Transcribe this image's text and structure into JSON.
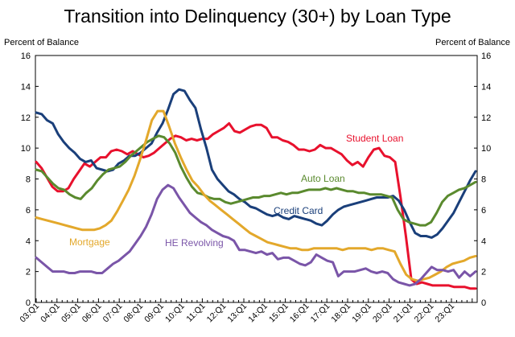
{
  "chart_data": {
    "type": "line",
    "title": "Transition into Delinquency (30+) by Loan Type",
    "ylabel_left": "Percent of Balance",
    "ylabel_right": "Percent of Balance",
    "ylim": [
      0,
      16
    ],
    "yticks": [
      "0",
      "2",
      "4",
      "6",
      "8",
      "10",
      "12",
      "14",
      "16"
    ],
    "xlabels": [
      "03:Q1",
      "04:Q1",
      "05:Q1",
      "06:Q1",
      "07:Q1",
      "08:Q1",
      "09:Q1",
      "10:Q1",
      "11:Q1",
      "12:Q1",
      "13:Q1",
      "14:Q1",
      "15:Q1",
      "16:Q1",
      "17:Q1",
      "18:Q1",
      "19:Q1",
      "20:Q1",
      "21:Q1",
      "22:Q1",
      "23:Q1"
    ],
    "series": [
      {
        "name": "Student Loan",
        "label": "Student Loan",
        "color": "#e8112d",
        "values": [
          9.1,
          8.7,
          8.1,
          7.5,
          7.2,
          7.2,
          7.4,
          8.0,
          8.5,
          9.0,
          8.8,
          9.1,
          9.4,
          9.4,
          9.8,
          9.9,
          9.8,
          9.6,
          9.8,
          9.6,
          9.4,
          9.5,
          9.7,
          10.0,
          10.3,
          10.6,
          10.8,
          10.7,
          10.5,
          10.6,
          10.5,
          10.6,
          10.6,
          10.9,
          11.1,
          11.3,
          11.6,
          11.1,
          11.0,
          11.2,
          11.4,
          11.5,
          11.5,
          11.3,
          10.7,
          10.7,
          10.5,
          10.4,
          10.2,
          9.9,
          9.9,
          9.8,
          9.9,
          10.2,
          10.0,
          10.0,
          9.8,
          9.6,
          9.2,
          8.9,
          9.1,
          8.8,
          9.4,
          9.9,
          10.0,
          9.5,
          9.4,
          9.1,
          6.8,
          4.3,
          1.5,
          1.2,
          1.3,
          1.2,
          1.1,
          1.1,
          1.1,
          1.1,
          1.0,
          1.0,
          1.0,
          0.9,
          0.9
        ]
      },
      {
        "name": "Credit Card",
        "label": "Credit Card",
        "color": "#1a3f7a",
        "values": [
          12.3,
          12.2,
          11.8,
          11.6,
          10.9,
          10.4,
          10.0,
          9.7,
          9.3,
          9.1,
          9.2,
          8.7,
          8.6,
          8.5,
          8.6,
          9.0,
          9.2,
          9.5,
          9.5,
          9.7,
          10.0,
          10.3,
          11.0,
          11.6,
          12.5,
          13.5,
          13.8,
          13.7,
          13.1,
          12.6,
          11.2,
          10.0,
          8.6,
          8.0,
          7.6,
          7.2,
          7.0,
          6.7,
          6.5,
          6.2,
          6.1,
          5.9,
          5.7,
          5.6,
          5.7,
          5.5,
          5.4,
          5.6,
          5.5,
          5.4,
          5.3,
          5.1,
          5.0,
          5.3,
          5.7,
          6.0,
          6.2,
          6.3,
          6.4,
          6.5,
          6.6,
          6.7,
          6.8,
          6.8,
          6.8,
          6.9,
          6.6,
          6.0,
          5.2,
          4.5,
          4.3,
          4.3,
          4.2,
          4.4,
          4.8,
          5.3,
          5.8,
          6.5,
          7.2,
          7.9,
          8.5
        ]
      },
      {
        "name": "Auto Loan",
        "label": "Auto Loan",
        "color": "#5a8a2e",
        "values": [
          8.6,
          8.5,
          8.1,
          7.7,
          7.4,
          7.3,
          7.0,
          6.8,
          6.7,
          7.1,
          7.4,
          7.9,
          8.3,
          8.6,
          8.7,
          8.8,
          9.1,
          9.5,
          9.8,
          10.1,
          10.4,
          10.6,
          10.8,
          10.7,
          10.3,
          9.7,
          8.8,
          8.1,
          7.5,
          7.1,
          7.0,
          6.8,
          6.7,
          6.7,
          6.5,
          6.4,
          6.5,
          6.6,
          6.7,
          6.8,
          6.8,
          6.9,
          6.9,
          7.0,
          7.1,
          7.0,
          7.1,
          7.1,
          7.2,
          7.3,
          7.3,
          7.3,
          7.4,
          7.3,
          7.4,
          7.3,
          7.2,
          7.2,
          7.1,
          7.1,
          7.0,
          7.0,
          7.0,
          6.9,
          6.8,
          6.0,
          5.4,
          5.2,
          5.1,
          5.0,
          5.0,
          5.2,
          5.8,
          6.5,
          6.9,
          7.1,
          7.3,
          7.4,
          7.6,
          7.8
        ]
      },
      {
        "name": "Mortgage",
        "label": "Mortgage",
        "color": "#e3a82b",
        "values": [
          5.5,
          5.4,
          5.3,
          5.2,
          5.1,
          5.0,
          4.9,
          4.8,
          4.7,
          4.7,
          4.7,
          4.8,
          5.0,
          5.3,
          5.9,
          6.6,
          7.3,
          8.2,
          9.3,
          10.5,
          11.8,
          12.4,
          12.4,
          11.4,
          10.3,
          9.4,
          8.6,
          7.9,
          7.5,
          7.0,
          6.6,
          6.3,
          6.0,
          5.7,
          5.4,
          5.1,
          4.8,
          4.5,
          4.3,
          4.1,
          3.9,
          3.8,
          3.7,
          3.6,
          3.5,
          3.5,
          3.4,
          3.4,
          3.5,
          3.5,
          3.5,
          3.5,
          3.5,
          3.4,
          3.5,
          3.5,
          3.5,
          3.5,
          3.4,
          3.5,
          3.5,
          3.4,
          3.3,
          2.5,
          1.8,
          1.5,
          1.4,
          1.5,
          1.6,
          1.8,
          2.0,
          2.3,
          2.5,
          2.6,
          2.7,
          2.9,
          3.0
        ]
      },
      {
        "name": "HE Revolving",
        "label": "HE Revolving",
        "color": "#7a55a8",
        "values": [
          2.9,
          2.6,
          2.3,
          2.0,
          2.0,
          2.0,
          1.9,
          1.9,
          2.0,
          2.0,
          2.0,
          1.9,
          1.9,
          2.2,
          2.5,
          2.7,
          3.0,
          3.3,
          3.8,
          4.3,
          4.9,
          5.7,
          6.7,
          7.3,
          7.6,
          7.4,
          6.8,
          6.3,
          5.8,
          5.5,
          5.2,
          5.0,
          4.7,
          4.5,
          4.3,
          4.2,
          4.0,
          3.4,
          3.4,
          3.3,
          3.2,
          3.3,
          3.1,
          3.2,
          2.8,
          2.9,
          2.9,
          2.7,
          2.5,
          2.4,
          2.6,
          3.1,
          2.9,
          2.7,
          2.6,
          1.7,
          2.0,
          2.0,
          2.0,
          2.1,
          2.2,
          2.0,
          1.9,
          2.0,
          1.9,
          1.5,
          1.3,
          1.2,
          1.1,
          1.2,
          1.5,
          1.9,
          2.3,
          2.1,
          2.1,
          2.0,
          2.1,
          1.6,
          2.0,
          1.7,
          2.0
        ]
      }
    ]
  }
}
